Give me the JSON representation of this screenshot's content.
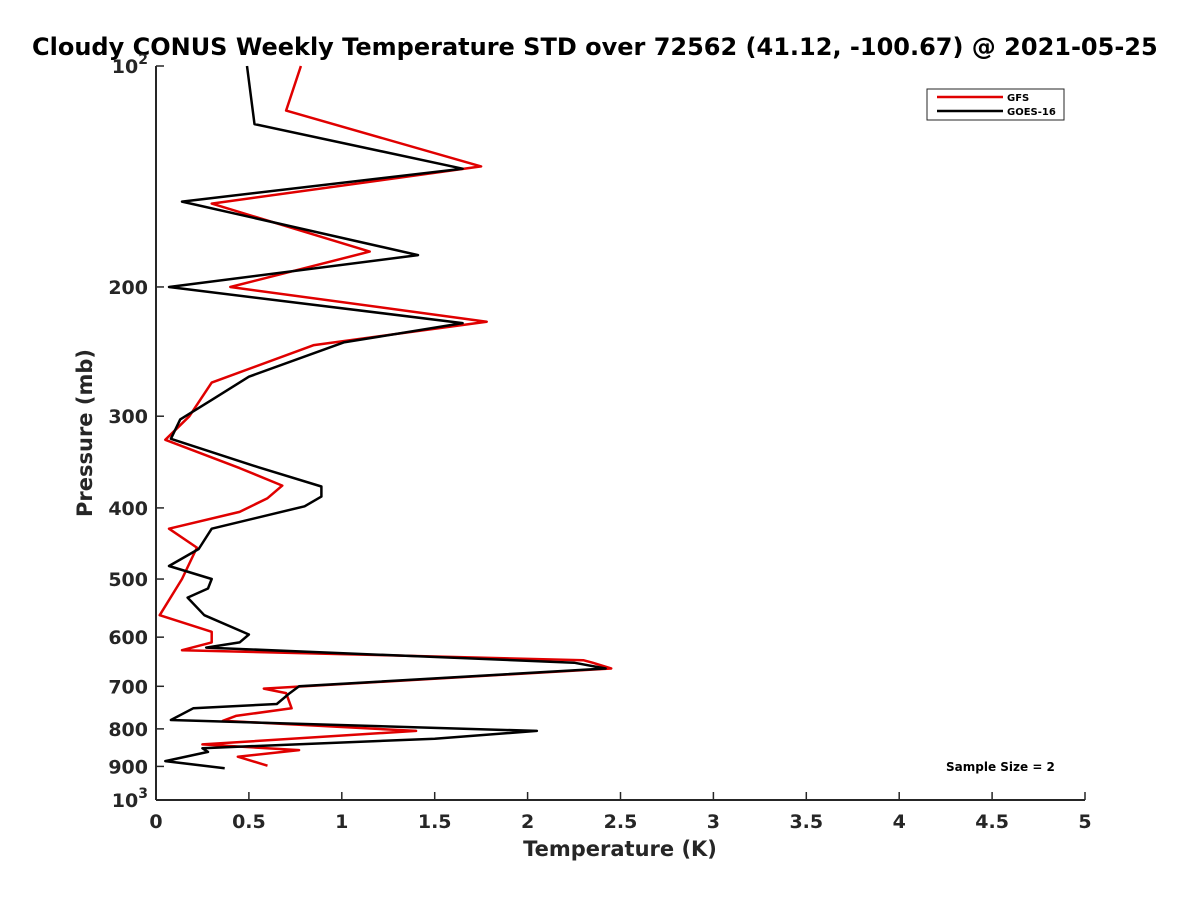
{
  "chart_data": {
    "type": "line",
    "title": "Cloudy CONUS Weekly Temperature STD over 72562 (41.12, -100.67) @ 2021-05-25",
    "xlabel": "Temperature (K)",
    "ylabel": "Pressure (mb)",
    "xlim": [
      0,
      5
    ],
    "ylim": [
      100,
      1000
    ],
    "y_scale": "log",
    "y_reversed": true,
    "xticks": [
      "0",
      "0.5",
      "1",
      "1.5",
      "2",
      "2.5",
      "3",
      "3.5",
      "4",
      "4.5",
      "5"
    ],
    "yticks": [
      {
        "value": 100,
        "base": "10",
        "exp": "2"
      },
      {
        "value": 200,
        "label": "200"
      },
      {
        "value": 300,
        "label": "300"
      },
      {
        "value": 400,
        "label": "400"
      },
      {
        "value": 500,
        "label": "500"
      },
      {
        "value": 600,
        "label": "600"
      },
      {
        "value": 700,
        "label": "700"
      },
      {
        "value": 800,
        "label": "800"
      },
      {
        "value": 900,
        "label": "900"
      },
      {
        "value": 1000,
        "base": "10",
        "exp": "3"
      }
    ],
    "legend_position": "top-right",
    "annotation": "Sample Size = 2",
    "series": [
      {
        "name": "GFS",
        "color": "#e00000",
        "points": [
          [
            0.78,
            100
          ],
          [
            0.7,
            115
          ],
          [
            1.75,
            137
          ],
          [
            0.3,
            154
          ],
          [
            1.15,
            179
          ],
          [
            0.4,
            200
          ],
          [
            1.78,
            223
          ],
          [
            0.85,
            240
          ],
          [
            0.3,
            270
          ],
          [
            0.18,
            300
          ],
          [
            0.05,
            323
          ],
          [
            0.45,
            353
          ],
          [
            0.68,
            373
          ],
          [
            0.6,
            388
          ],
          [
            0.45,
            405
          ],
          [
            0.07,
            427
          ],
          [
            0.22,
            453
          ],
          [
            0.14,
            500
          ],
          [
            0.02,
            560
          ],
          [
            0.3,
            590
          ],
          [
            0.3,
            610
          ],
          [
            0.14,
            625
          ],
          [
            2.3,
            645
          ],
          [
            2.35,
            650
          ],
          [
            2.45,
            662
          ],
          [
            0.58,
            705
          ],
          [
            0.7,
            715
          ],
          [
            0.73,
            750
          ],
          [
            0.43,
            768
          ],
          [
            0.36,
            780
          ],
          [
            1.4,
            805
          ],
          [
            0.25,
            840
          ],
          [
            0.77,
            855
          ],
          [
            0.44,
            873
          ],
          [
            0.6,
            898
          ]
        ]
      },
      {
        "name": "GOES-16",
        "color": "#000000",
        "points": [
          [
            0.49,
            100
          ],
          [
            0.53,
            120
          ],
          [
            1.65,
            138
          ],
          [
            0.14,
            153
          ],
          [
            1.41,
            181
          ],
          [
            0.07,
            200
          ],
          [
            1.65,
            224
          ],
          [
            1.01,
            238
          ],
          [
            0.5,
            265
          ],
          [
            0.3,
            285
          ],
          [
            0.13,
            303
          ],
          [
            0.08,
            322
          ],
          [
            0.55,
            352
          ],
          [
            0.89,
            374
          ],
          [
            0.89,
            386
          ],
          [
            0.8,
            398
          ],
          [
            0.3,
            427
          ],
          [
            0.23,
            455
          ],
          [
            0.07,
            480
          ],
          [
            0.3,
            500
          ],
          [
            0.28,
            515
          ],
          [
            0.17,
            530
          ],
          [
            0.26,
            560
          ],
          [
            0.5,
            595
          ],
          [
            0.45,
            610
          ],
          [
            0.27,
            620
          ],
          [
            2.25,
            650
          ],
          [
            2.42,
            662
          ],
          [
            0.77,
            700
          ],
          [
            0.72,
            715
          ],
          [
            0.65,
            740
          ],
          [
            0.2,
            750
          ],
          [
            0.08,
            778
          ],
          [
            2.05,
            805
          ],
          [
            1.5,
            825
          ],
          [
            0.25,
            850
          ],
          [
            0.28,
            860
          ],
          [
            0.05,
            885
          ],
          [
            0.37,
            905
          ]
        ]
      }
    ]
  }
}
